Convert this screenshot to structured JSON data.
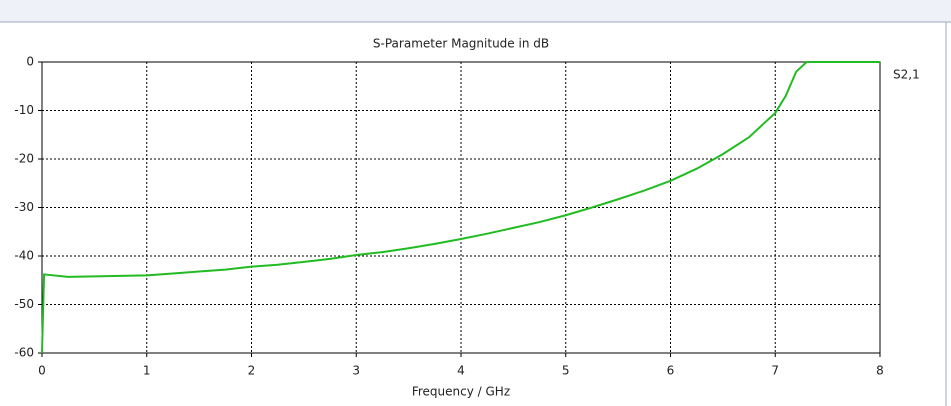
{
  "chart_data": {
    "type": "line",
    "title": "S-Parameter Magnitude in dB",
    "x_label": "Frequency / GHz",
    "x": [
      0,
      0.02,
      0.25,
      0.5,
      0.75,
      1.0,
      1.25,
      1.5,
      1.75,
      2.0,
      2.25,
      2.5,
      2.75,
      3.0,
      3.25,
      3.5,
      3.75,
      4.0,
      4.25,
      4.5,
      4.75,
      5.0,
      5.25,
      5.5,
      5.75,
      6.0,
      6.25,
      6.5,
      6.75,
      7.0,
      7.1,
      7.2,
      7.3,
      7.5,
      8.0
    ],
    "series": [
      {
        "name": "S2,1",
        "color": "#22bb22",
        "values": [
          -60,
          -43.8,
          -44.3,
          -44.2,
          -44.1,
          -44,
          -43.6,
          -43.2,
          -42.8,
          -42.2,
          -41.8,
          -41.2,
          -40.6,
          -39.8,
          -39.2,
          -38.4,
          -37.5,
          -36.5,
          -35.4,
          -34.2,
          -33,
          -31.6,
          -30,
          -28.3,
          -26.5,
          -24.5,
          -22,
          -19,
          -15.5,
          -10.5,
          -7,
          -2,
          0,
          0,
          0
        ]
      }
    ],
    "xlim": [
      0,
      8
    ],
    "xticks": [
      0,
      1,
      2,
      3,
      4,
      5,
      6,
      7,
      8
    ],
    "ylim": [
      -60,
      0
    ],
    "yticks": [
      -60,
      -50,
      -40,
      -30,
      -20,
      -10,
      0
    ],
    "grid": true,
    "legend": "right"
  }
}
